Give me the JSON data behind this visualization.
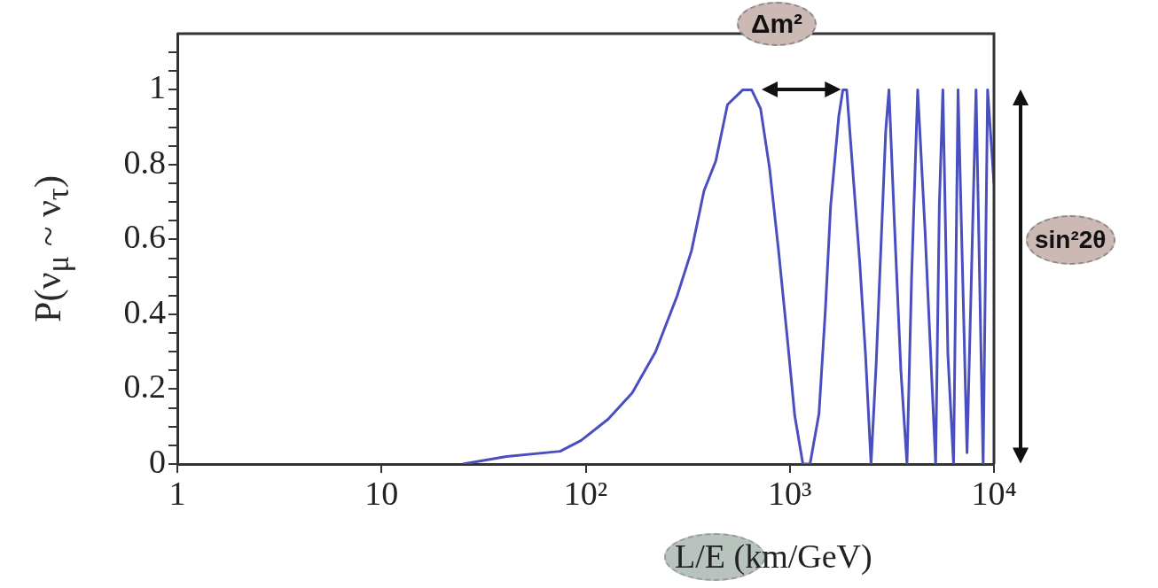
{
  "chart_data": {
    "type": "line",
    "xlabel": "L/E (km/GeV)",
    "ylabel": "P(ν$_{μ}$ ~ ν$_{τ}$)",
    "log": "x",
    "xlim": [
      1,
      10000
    ],
    "ylim": [
      0,
      1.15
    ],
    "xticks": [
      {
        "value": 1,
        "label": "1"
      },
      {
        "value": 10,
        "label": "10"
      },
      {
        "value": 100,
        "label": "10²"
      },
      {
        "value": 1000,
        "label": "10³"
      },
      {
        "value": 10000,
        "label": "10⁴"
      }
    ],
    "yticks": [
      0,
      {
        "value": 0.05,
        "label": null
      },
      {
        "value": 0.1,
        "label": null
      },
      {
        "value": 0.15,
        "label": null
      },
      0.2,
      {
        "value": 0.25,
        "label": null
      },
      {
        "value": 0.3,
        "label": null
      },
      {
        "value": 0.35,
        "label": null
      },
      0.4,
      {
        "value": 0.45,
        "label": null
      },
      {
        "value": 0.5,
        "label": null
      },
      {
        "value": 0.55,
        "label": null
      },
      0.6,
      {
        "value": 0.65,
        "label": null
      },
      {
        "value": 0.7,
        "label": null
      },
      {
        "value": 0.75,
        "label": null
      },
      0.8,
      {
        "value": 0.85,
        "label": null
      },
      {
        "value": 0.9,
        "label": null
      },
      {
        "value": 0.95,
        "label": null
      },
      1,
      {
        "value": 1.05,
        "label": null
      },
      {
        "value": 1.1,
        "label": null
      }
    ],
    "grid": false,
    "marker": "none",
    "line_style": "solid",
    "annotations": [
      "Δm²",
      "sin²2θ"
    ],
    "series": [
      {
        "color": "#4a4fc0",
        "x": [
          25,
          41,
          75,
          95,
          129,
          169,
          220,
          281,
          330,
          380,
          434,
          495,
          589,
          650,
          719,
          796,
          881,
          975,
          1057,
          1159,
          1256,
          1390,
          1493,
          1585,
          1738,
          1820,
          1900,
          2050,
          2200,
          2350,
          2500,
          2650,
          2800,
          2950,
          3060,
          3250,
          3500,
          3750,
          3950,
          4230,
          4600,
          4900,
          5180,
          5400,
          5620,
          5950,
          6340,
          6670,
          7380,
          8170,
          8850,
          9310,
          10000
        ],
        "values": [
          0,
          0.02,
          0.034,
          0.063,
          0.12,
          0.19,
          0.3,
          0.45,
          0.57,
          0.73,
          0.81,
          0.96,
          1,
          1,
          0.95,
          0.79,
          0.57,
          0.33,
          0.13,
          0,
          0,
          0.135,
          0.41,
          0.69,
          0.93,
          1,
          1,
          0.76,
          0.54,
          0.29,
          0,
          0.27,
          0.59,
          0.89,
          1,
          0.65,
          0.25,
          0,
          0.5,
          1,
          0.62,
          0.29,
          0,
          0.69,
          1,
          0.29,
          0,
          1,
          0.03,
          1,
          0,
          1,
          0.75
        ]
      }
    ]
  }
}
